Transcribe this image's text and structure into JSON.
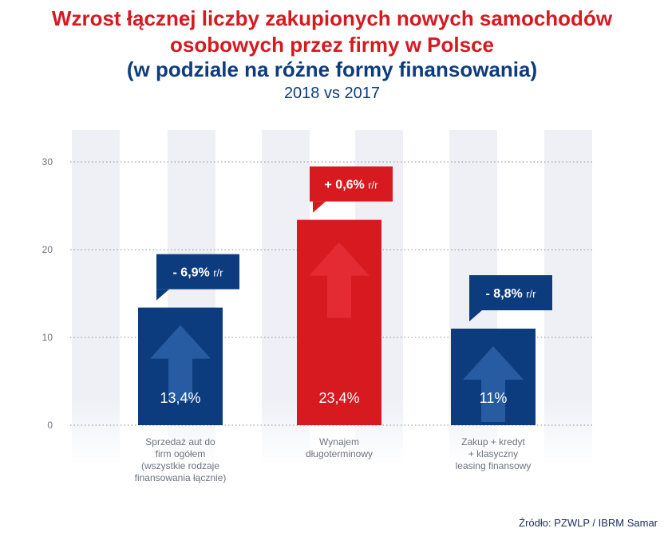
{
  "title": {
    "line1": "Wzrost łącznej liczby zakupionych nowych samochodów",
    "line2": "osobowych przez firmy w Polsce",
    "line3": "(w podziale na różne formy finansowania)"
  },
  "subtitle": "2018 vs 2017",
  "source": "Źródło: PZWLP / IBRM Samar",
  "colors": {
    "red": "#d71920",
    "blue": "#0d3c7e",
    "stripe": "#eef0f6"
  },
  "chart_data": {
    "type": "bar",
    "ylim": [
      0,
      30
    ],
    "yticks": [
      "0",
      "10",
      "20",
      "30"
    ],
    "grid": true,
    "categories": [
      [
        "Sprzedaż aut do",
        "firm ogółem",
        "(wszystkie rodzaje",
        "finansowania łącznie)"
      ],
      [
        "Wynajem",
        "długoterminowy"
      ],
      [
        "Zakup + kredyt",
        "+ klasyczny",
        "leasing finansowy"
      ]
    ],
    "values": [
      13.4,
      23.4,
      11
    ],
    "value_labels": [
      "13,4%",
      "23,4%",
      "11%"
    ],
    "bar_colors": [
      "#0d3c7e",
      "#d71920",
      "#0d3c7e"
    ],
    "callouts": [
      {
        "text": "- 6,9%",
        "unit": "r/r",
        "color": "#0d3c7e"
      },
      {
        "text": "+ 0,6%",
        "unit": "r/r",
        "color": "#d71920"
      },
      {
        "text": "- 8,8%",
        "unit": "r/r",
        "color": "#0d3c7e"
      }
    ]
  }
}
